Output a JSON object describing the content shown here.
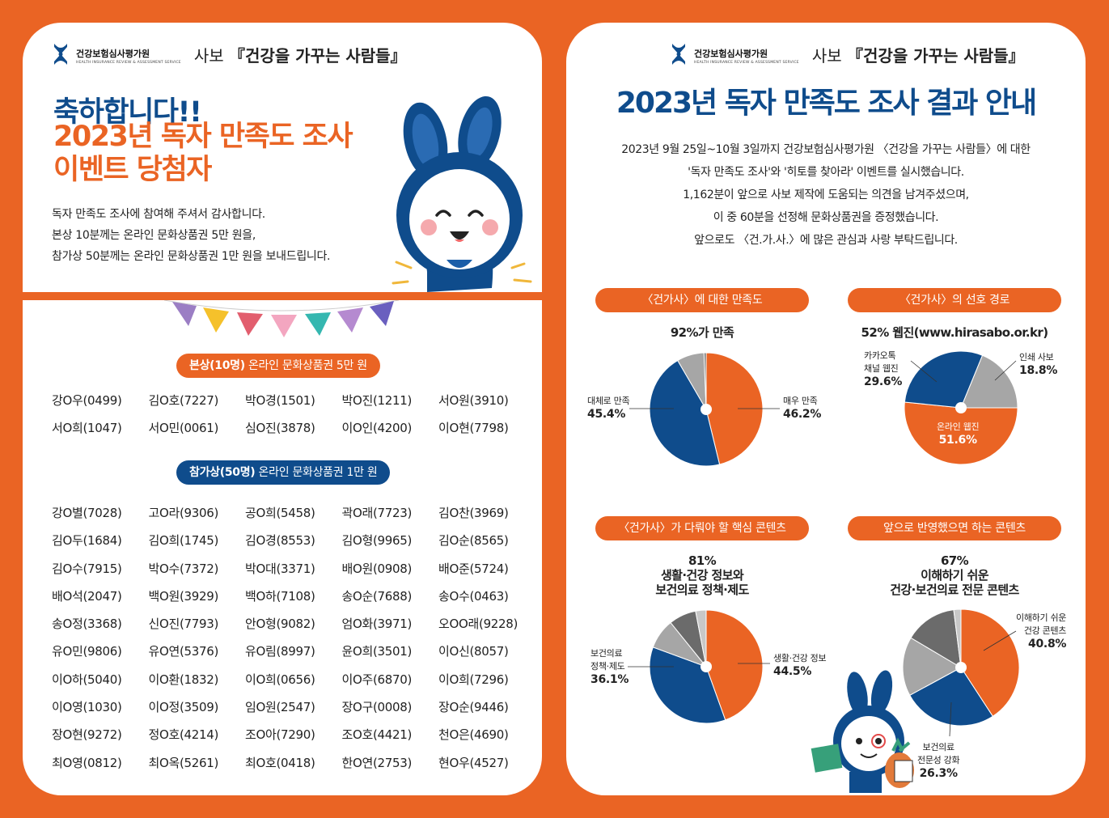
{
  "colors": {
    "orange": "#ea6424",
    "navy": "#0f4c8c",
    "gray": "#a6a6a6",
    "darkgray": "#6b6b6b",
    "white": "#ffffff"
  },
  "brand": {
    "org": "건강보험심사평가원",
    "org_en": "HEALTH INSURANCE REVIEW & ASSESSMENT SERVICE",
    "magazine_prefix": "사보",
    "magazine_name": "『건강을 가꾸는 사람들』"
  },
  "left": {
    "title_line1": "축하합니다!!",
    "title_line2": "2023년 독자 만족도 조사",
    "title_line3": "이벤트 당첨자",
    "intro": [
      "독자 만족도 조사에 참여해 주셔서 감사합니다.",
      "본상 10분께는 온라인 문화상품권 5만 원을,",
      "참가상 50분께는 온라인 문화상품권 1만 원을 보내드립니다."
    ],
    "main_prize": {
      "bold": "본상(10명)",
      "text": " 온라인 문화상품권 5만 원"
    },
    "main_winners": [
      "강O우(0499)",
      "김O호(7227)",
      "박O경(1501)",
      "박O진(1211)",
      "서O원(3910)",
      "서O희(1047)",
      "서O민(0061)",
      "심O진(3878)",
      "이O인(4200)",
      "이O현(7798)"
    ],
    "participation_prize": {
      "bold": "참가상(50명)",
      "text": " 온라인 문화상품권 1만 원"
    },
    "participation_winners": [
      "강O별(7028)",
      "고O라(9306)",
      "공O희(5458)",
      "곽O래(7723)",
      "김O찬(3969)",
      "김O두(1684)",
      "김O희(1745)",
      "김O경(8553)",
      "김O형(9965)",
      "김O순(8565)",
      "김O수(7915)",
      "박O수(7372)",
      "박O대(3371)",
      "배O원(0908)",
      "배O준(5724)",
      "배O석(2047)",
      "백O원(3929)",
      "백O하(7108)",
      "송O순(7688)",
      "송O수(0463)",
      "송O정(3368)",
      "신O진(7793)",
      "안O형(9082)",
      "엄O화(3971)",
      "오OO래(9228)",
      "유O민(9806)",
      "유O연(5376)",
      "유O림(8997)",
      "윤O희(3501)",
      "이O신(8057)",
      "이O하(5040)",
      "이O환(1832)",
      "이O희(0656)",
      "이O주(6870)",
      "이O희(7296)",
      "이O영(1030)",
      "이O정(3509)",
      "임O원(2547)",
      "장O구(0008)",
      "장O순(9446)",
      "장O현(9272)",
      "정O호(4214)",
      "조O아(7290)",
      "조O호(4421)",
      "천O은(4690)",
      "최O영(0812)",
      "최O옥(5261)",
      "최O호(0418)",
      "한O연(2753)",
      "현O우(4527)"
    ]
  },
  "right": {
    "title": "2023년 독자 만족도 조사 결과 안내",
    "intro": [
      "2023년 9월 25일~10월 3일까지 건강보험심사평가원 〈건강을 가꾸는 사람들〉에 대한",
      "'독자 만족도 조사'와 '히토를 찾아라' 이벤트를 실시했습니다.",
      "1,162분이 앞으로 사보 제작에 도움되는 의견을 남겨주셨으며,",
      "이 중 60분을 선정해 문화상품권을 증정했습니다.",
      "앞으로도 〈건.가.사.〉에 많은 관심과 사랑 부탁드립니다."
    ]
  },
  "chart_data": [
    {
      "type": "pie",
      "title": "〈건가사〉에 대한 만족도",
      "subtitle": "92%가 만족",
      "slices": [
        {
          "label": "매우 만족",
          "value": 46.2,
          "color": "#ea6424"
        },
        {
          "label": "대체로 만족",
          "value": 45.4,
          "color": "#0f4c8c"
        },
        {
          "label": "",
          "value": 7.8,
          "color": "#a6a6a6"
        },
        {
          "label": "",
          "value": 0.6,
          "color": "#6b6b6b"
        }
      ]
    },
    {
      "type": "pie",
      "title": "〈건가사〉의 선호 경로",
      "subtitle": "52% 웹진(www.hirasabo.or.kr)",
      "slices": [
        {
          "label": "인쇄 사보",
          "value": 18.8,
          "color": "#a6a6a6"
        },
        {
          "label": "온라인 웹진",
          "value": 51.6,
          "color": "#ea6424"
        },
        {
          "label": "카카오톡 채널 웹진",
          "value": 29.6,
          "color": "#0f4c8c"
        }
      ]
    },
    {
      "type": "pie",
      "title": "〈건가사〉가 다뤄야 할 핵심 콘텐츠",
      "subtitle": [
        "81%",
        "생활·건강 정보와",
        "보건의료 정책·제도"
      ],
      "slices": [
        {
          "label": "생활·건강 정보",
          "value": 44.5,
          "color": "#ea6424"
        },
        {
          "label": "보건의료 정책·제도",
          "value": 36.1,
          "color": "#0f4c8c"
        },
        {
          "label": "",
          "value": 8.6,
          "color": "#a6a6a6"
        },
        {
          "label": "",
          "value": 7.8,
          "color": "#6b6b6b"
        },
        {
          "label": "",
          "value": 3.0,
          "color": "#c8c8c8"
        }
      ]
    },
    {
      "type": "pie",
      "title": "앞으로 반영했으면 하는 콘텐츠",
      "subtitle": [
        "67%",
        "이해하기 쉬운",
        "건강·보건의료 전문 콘텐츠"
      ],
      "slices": [
        {
          "label": "이해하기 쉬운 건강 콘텐츠",
          "value": 40.8,
          "color": "#ea6424"
        },
        {
          "label": "보건의료 전문성 강화",
          "value": 26.3,
          "color": "#0f4c8c"
        },
        {
          "label": "",
          "value": 16.4,
          "color": "#a6a6a6"
        },
        {
          "label": "",
          "value": 14.5,
          "color": "#6b6b6b"
        },
        {
          "label": "",
          "value": 2.0,
          "color": "#c8c8c8"
        }
      ]
    }
  ],
  "chart_labels": {
    "c1": {
      "r_name": "매우 만족",
      "r_val": "46.2%",
      "l_name": "대체로 만족",
      "l_val": "45.4%"
    },
    "c2": {
      "tr_name": "인쇄 사보",
      "tr_val": "18.8%",
      "l_name1": "카카오톡",
      "l_name2": "채널 웹진",
      "l_val": "29.6%",
      "c_name": "온라인 웹진",
      "c_val": "51.6%"
    },
    "c3": {
      "r_name": "생활·건강 정보",
      "r_val": "44.5%",
      "l_name1": "보건의료",
      "l_name2": "정책·제도",
      "l_val": "36.1%"
    },
    "c4": {
      "tr_name1": "이해하기 쉬운",
      "tr_name2": "건강 콘텐츠",
      "tr_val": "40.8%",
      "b_name1": "보건의료",
      "b_name2": "전문성 강화",
      "b_val": "26.3%"
    }
  }
}
